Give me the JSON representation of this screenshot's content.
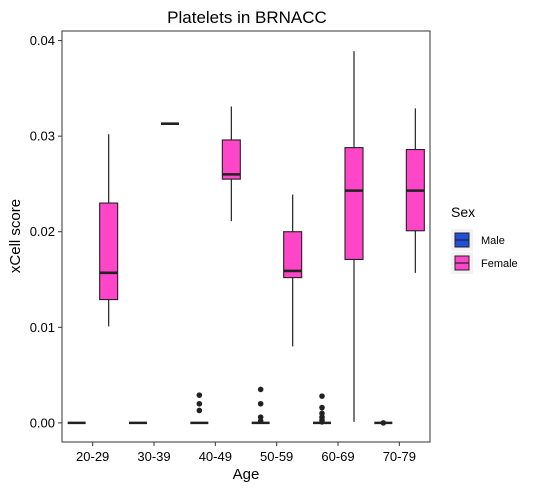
{
  "chart_data": {
    "type": "boxplot",
    "title": "Platelets in BRNACC",
    "xlabel": "Age",
    "ylabel": "xCell score",
    "categories": [
      "20-29",
      "30-39",
      "40-49",
      "50-59",
      "60-69",
      "70-79"
    ],
    "ylim": [
      -0.002,
      0.041
    ],
    "yticks": [
      0.0,
      0.01,
      0.02,
      0.03,
      0.04
    ],
    "ytick_labels": [
      "0.00",
      "0.01",
      "0.02",
      "0.03",
      "0.04"
    ],
    "grid": false,
    "legend": {
      "title": "Sex",
      "position": "right"
    },
    "series": [
      {
        "name": "Male",
        "color": "#1f4fdb",
        "boxes": [
          {
            "category": "20-29",
            "whisker_low": 0.0,
            "q1": 0.0,
            "median": 0.0,
            "q3": 0.0,
            "whisker_high": 0.0,
            "outliers": []
          },
          {
            "category": "30-39",
            "whisker_low": 0.0,
            "q1": 0.0,
            "median": 0.0,
            "q3": 0.0,
            "whisker_high": 0.0,
            "outliers": []
          },
          {
            "category": "40-49",
            "whisker_low": 0.0,
            "q1": 0.0,
            "median": 0.0,
            "q3": 0.0,
            "whisker_high": 0.0,
            "outliers": [
              0.0013,
              0.002,
              0.0029
            ]
          },
          {
            "category": "50-59",
            "whisker_low": 0.0,
            "q1": 0.0,
            "median": 0.0,
            "q3": 0.0,
            "whisker_high": 0.0,
            "outliers": [
              0.0002,
              0.0006,
              0.002,
              0.0035
            ]
          },
          {
            "category": "60-69",
            "whisker_low": 0.0,
            "q1": 0.0,
            "median": 0.0,
            "q3": 0.0,
            "whisker_high": 0.0,
            "outliers": [
              0.0001,
              0.0003,
              0.0006,
              0.001,
              0.0016,
              0.0028
            ]
          },
          {
            "category": "70-79",
            "whisker_low": 0.0,
            "q1": 0.0,
            "median": 0.0,
            "q3": 0.0,
            "whisker_high": 0.0,
            "outliers": [
              0.0
            ]
          }
        ]
      },
      {
        "name": "Female",
        "color": "#ff45c8",
        "boxes": [
          {
            "category": "20-29",
            "whisker_low": 0.0101,
            "q1": 0.0129,
            "median": 0.0157,
            "q3": 0.023,
            "whisker_high": 0.0302,
            "outliers": []
          },
          {
            "category": "30-39",
            "whisker_low": 0.0313,
            "q1": 0.0313,
            "median": 0.0313,
            "q3": 0.0313,
            "whisker_high": 0.0313,
            "outliers": []
          },
          {
            "category": "40-49",
            "whisker_low": 0.0211,
            "q1": 0.0255,
            "median": 0.026,
            "q3": 0.0296,
            "whisker_high": 0.0331,
            "outliers": []
          },
          {
            "category": "50-59",
            "whisker_low": 0.008,
            "q1": 0.0152,
            "median": 0.0159,
            "q3": 0.02,
            "whisker_high": 0.0239,
            "outliers": []
          },
          {
            "category": "60-69",
            "whisker_low": 0.0001,
            "q1": 0.0171,
            "median": 0.0243,
            "q3": 0.0288,
            "whisker_high": 0.0389,
            "outliers": []
          },
          {
            "category": "70-79",
            "whisker_low": 0.0157,
            "q1": 0.0201,
            "median": 0.0243,
            "q3": 0.0286,
            "whisker_high": 0.0329,
            "outliers": []
          }
        ]
      }
    ]
  }
}
